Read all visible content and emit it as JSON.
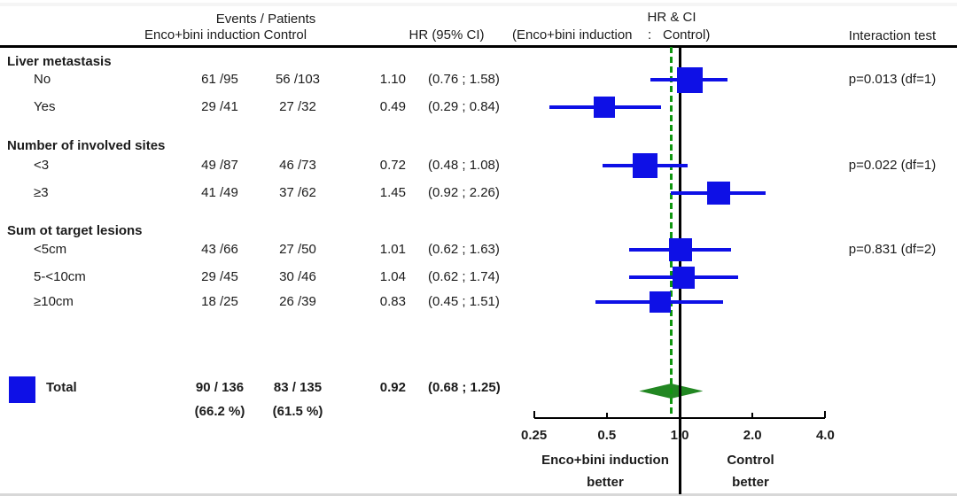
{
  "header": {
    "events_patients": "Events / Patients",
    "arm_labels": "Enco+bini induction Control",
    "hr_ci": "HR (95% CI)",
    "plot_title": "HR & CI",
    "plot_subtitle_left": "(Enco+bini induction",
    "plot_subtitle_colon": ":",
    "plot_subtitle_right": "Control)",
    "interaction": "Interaction test"
  },
  "colors": {
    "marker_blue": "#0e10e6",
    "diamond_green": "#228722",
    "dashed_green": "#0f960f",
    "axis_black": "#000000"
  },
  "chart_data": {
    "type": "forest",
    "x_axis": {
      "scale": "log",
      "ticks": [
        "0.25",
        "0.5",
        "1.0",
        "2.0",
        "4.0"
      ],
      "tick_values": [
        0.25,
        0.5,
        1.0,
        2.0,
        4.0
      ],
      "min": 0.25,
      "max": 4.0,
      "reference_line": 1.0,
      "overall_line": 0.92
    },
    "groups": [
      {
        "label": "Liver metastasis",
        "interaction_p": "p=0.013 (df=1)",
        "rows": [
          {
            "label": "No",
            "enco_text": "61 /95",
            "control_text": "56 /103",
            "enco_events": 61,
            "enco_n": 95,
            "control_events": 56,
            "control_n": 103,
            "hr": 1.1,
            "hr_text": "1.10",
            "ci_low": 0.76,
            "ci_high": 1.58,
            "ci_text": "(0.76 ; 1.58)"
          },
          {
            "label": "Yes",
            "enco_text": "29 /41",
            "control_text": "27 /32",
            "enco_events": 29,
            "enco_n": 41,
            "control_events": 27,
            "control_n": 32,
            "hr": 0.49,
            "hr_text": "0.49",
            "ci_low": 0.29,
            "ci_high": 0.84,
            "ci_text": "(0.29 ; 0.84)"
          }
        ]
      },
      {
        "label": "Number of involved sites",
        "interaction_p": "p=0.022 (df=1)",
        "rows": [
          {
            "label": "<3",
            "enco_text": "49 /87",
            "control_text": "46 /73",
            "enco_events": 49,
            "enco_n": 87,
            "control_events": 46,
            "control_n": 73,
            "hr": 0.72,
            "hr_text": "0.72",
            "ci_low": 0.48,
            "ci_high": 1.08,
            "ci_text": "(0.48 ; 1.08)"
          },
          {
            "label": "≥3",
            "enco_text": "41 /49",
            "control_text": "37 /62",
            "enco_events": 41,
            "enco_n": 49,
            "control_events": 37,
            "control_n": 62,
            "hr": 1.45,
            "hr_text": "1.45",
            "ci_low": 0.92,
            "ci_high": 2.26,
            "ci_text": "(0.92 ; 2.26)"
          }
        ]
      },
      {
        "label": "Sum ot target lesions",
        "interaction_p": "p=0.831 (df=2)",
        "rows": [
          {
            "label": "<5cm",
            "enco_text": "43 /66",
            "control_text": "27 /50",
            "enco_events": 43,
            "enco_n": 66,
            "control_events": 27,
            "control_n": 50,
            "hr": 1.01,
            "hr_text": "1.01",
            "ci_low": 0.62,
            "ci_high": 1.63,
            "ci_text": "(0.62 ; 1.63)"
          },
          {
            "label": "5-<10cm",
            "enco_text": "29 /45",
            "control_text": "30 /46",
            "enco_events": 29,
            "enco_n": 45,
            "control_events": 30,
            "control_n": 46,
            "hr": 1.04,
            "hr_text": "1.04",
            "ci_low": 0.62,
            "ci_high": 1.74,
            "ci_text": "(0.62 ; 1.74)"
          },
          {
            "label": "≥10cm",
            "enco_text": "18 /25",
            "control_text": "26 /39",
            "enco_events": 18,
            "enco_n": 25,
            "control_events": 26,
            "control_n": 39,
            "hr": 0.83,
            "hr_text": "0.83",
            "ci_low": 0.45,
            "ci_high": 1.51,
            "ci_text": "(0.45 ; 1.51)"
          }
        ]
      }
    ],
    "total": {
      "label": "Total",
      "enco_text": "90 / 136",
      "enco_pct": "(66.2 %)",
      "control_text": "83 / 135",
      "control_pct": "(61.5 %)",
      "hr": 0.92,
      "hr_text": "0.92",
      "ci_low": 0.68,
      "ci_high": 1.25,
      "ci_text": "(0.68 ; 1.25)"
    },
    "footer": {
      "left_line1": "Enco+bini induction",
      "left_line2": "better",
      "right_line1": "Control",
      "right_line2": "better"
    }
  }
}
